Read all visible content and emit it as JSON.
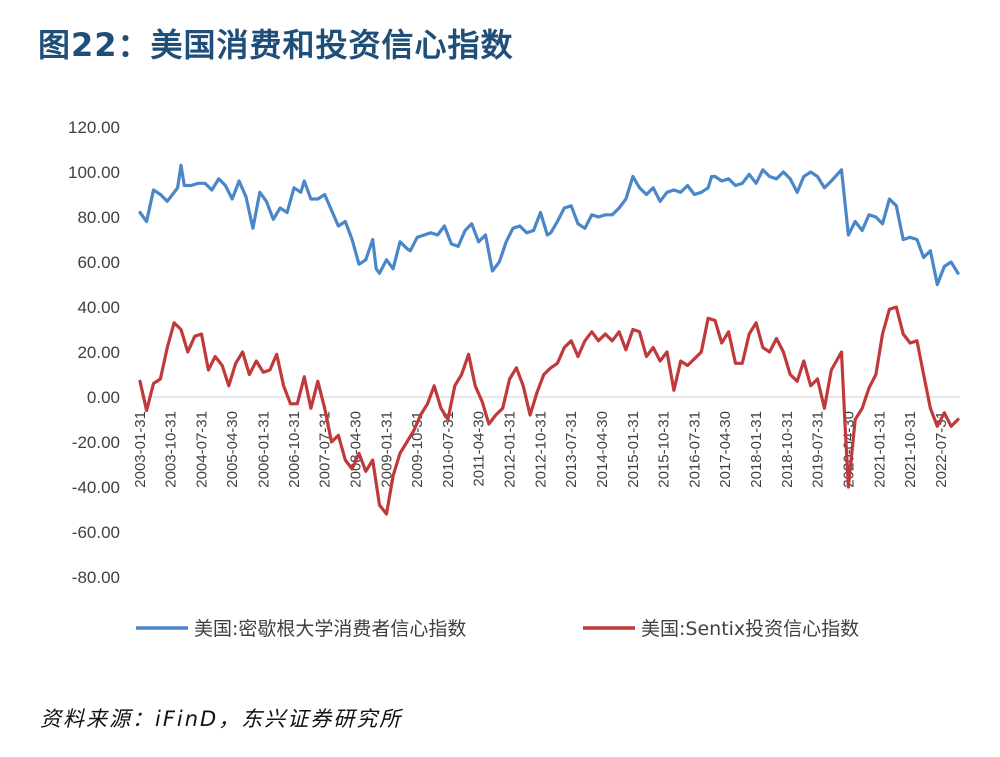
{
  "figure": {
    "title": "图22：美国消费和投资信心指数",
    "source": "资料来源：iFinD，东兴证券研究所"
  },
  "chart_data": {
    "type": "line",
    "title": "图22：美国消费和投资信心指数",
    "xlabel": "",
    "ylabel": "",
    "ylim": [
      -80,
      120
    ],
    "yticks": [
      "120.00",
      "100.00",
      "80.00",
      "60.00",
      "40.00",
      "20.00",
      "0.00",
      "-20.00",
      "-40.00",
      "-60.00",
      "-80.00"
    ],
    "ytick_values": [
      120,
      100,
      80,
      60,
      40,
      20,
      0,
      -20,
      -40,
      -60,
      -80
    ],
    "xtick_labels": [
      "2003-01-31",
      "2003-10-31",
      "2004-07-31",
      "2005-04-30",
      "2006-01-31",
      "2006-10-31",
      "2007-07-31",
      "2008-04-30",
      "2009-01-31",
      "2009-10-31",
      "2010-07-31",
      "2011-04-30",
      "2012-01-31",
      "2012-10-31",
      "2013-07-31",
      "2014-04-30",
      "2015-01-31",
      "2015-10-31",
      "2016-07-31",
      "2017-04-30",
      "2018-01-31",
      "2018-10-31",
      "2019-07-31",
      "2020-04-30",
      "2021-01-31",
      "2021-10-31",
      "2022-07-31"
    ],
    "x_range": [
      "2003-01-31",
      "2022-12-31"
    ],
    "grid": false,
    "zero_line": true,
    "legend_position": "bottom",
    "series": [
      {
        "name": "美国:密歇根大学消费者信心指数",
        "color": "#4a86c8",
        "points": [
          [
            "2003-01-31",
            82
          ],
          [
            "2003-03-31",
            78
          ],
          [
            "2003-05-31",
            92
          ],
          [
            "2003-07-31",
            90
          ],
          [
            "2003-09-31",
            87
          ],
          [
            "2003-12-31",
            93
          ],
          [
            "2004-01-31",
            103
          ],
          [
            "2004-02-29",
            94
          ],
          [
            "2004-04-30",
            94
          ],
          [
            "2004-06-30",
            95
          ],
          [
            "2004-08-31",
            95
          ],
          [
            "2004-10-31",
            92
          ],
          [
            "2004-12-31",
            97
          ],
          [
            "2005-02-28",
            94
          ],
          [
            "2005-04-30",
            88
          ],
          [
            "2005-06-30",
            96
          ],
          [
            "2005-08-31",
            89
          ],
          [
            "2005-10-31",
            75
          ],
          [
            "2005-12-31",
            91
          ],
          [
            "2006-02-28",
            87
          ],
          [
            "2006-04-30",
            79
          ],
          [
            "2006-06-30",
            84
          ],
          [
            "2006-08-31",
            82
          ],
          [
            "2006-10-31",
            93
          ],
          [
            "2006-12-31",
            91
          ],
          [
            "2007-01-31",
            96
          ],
          [
            "2007-03-31",
            88
          ],
          [
            "2007-05-31",
            88
          ],
          [
            "2007-07-31",
            90
          ],
          [
            "2007-09-30",
            83
          ],
          [
            "2007-11-30",
            76
          ],
          [
            "2008-01-31",
            78
          ],
          [
            "2008-03-31",
            70
          ],
          [
            "2008-05-31",
            59
          ],
          [
            "2008-07-31",
            61
          ],
          [
            "2008-09-30",
            70
          ],
          [
            "2008-10-31",
            57
          ],
          [
            "2008-11-30",
            55
          ],
          [
            "2009-01-31",
            61
          ],
          [
            "2009-03-31",
            57
          ],
          [
            "2009-05-31",
            69
          ],
          [
            "2009-07-31",
            66
          ],
          [
            "2009-08-31",
            65
          ],
          [
            "2009-10-31",
            71
          ],
          [
            "2009-12-31",
            72
          ],
          [
            "2010-02-28",
            73
          ],
          [
            "2010-04-30",
            72
          ],
          [
            "2010-06-30",
            76
          ],
          [
            "2010-08-31",
            68
          ],
          [
            "2010-10-31",
            67
          ],
          [
            "2010-12-31",
            74
          ],
          [
            "2011-02-28",
            77
          ],
          [
            "2011-04-30",
            69
          ],
          [
            "2011-06-30",
            72
          ],
          [
            "2011-08-31",
            56
          ],
          [
            "2011-10-31",
            60
          ],
          [
            "2011-12-31",
            69
          ],
          [
            "2012-02-29",
            75
          ],
          [
            "2012-04-30",
            76
          ],
          [
            "2012-06-30",
            73
          ],
          [
            "2012-08-31",
            74
          ],
          [
            "2012-10-31",
            82
          ],
          [
            "2012-12-31",
            72
          ],
          [
            "2013-01-31",
            73
          ],
          [
            "2013-03-31",
            78
          ],
          [
            "2013-05-31",
            84
          ],
          [
            "2013-07-31",
            85
          ],
          [
            "2013-09-30",
            77
          ],
          [
            "2013-11-30",
            75
          ],
          [
            "2014-01-31",
            81
          ],
          [
            "2014-03-31",
            80
          ],
          [
            "2014-05-31",
            81
          ],
          [
            "2014-07-31",
            81
          ],
          [
            "2014-09-30",
            84
          ],
          [
            "2014-11-30",
            88
          ],
          [
            "2015-01-31",
            98
          ],
          [
            "2015-03-31",
            93
          ],
          [
            "2015-05-31",
            90
          ],
          [
            "2015-07-31",
            93
          ],
          [
            "2015-09-30",
            87
          ],
          [
            "2015-11-30",
            91
          ],
          [
            "2016-01-31",
            92
          ],
          [
            "2016-03-31",
            91
          ],
          [
            "2016-05-31",
            94
          ],
          [
            "2016-07-31",
            90
          ],
          [
            "2016-09-30",
            91
          ],
          [
            "2016-11-30",
            93
          ],
          [
            "2016-12-31",
            98
          ],
          [
            "2017-01-31",
            98
          ],
          [
            "2017-03-31",
            96
          ],
          [
            "2017-05-31",
            97
          ],
          [
            "2017-07-31",
            94
          ],
          [
            "2017-09-30",
            95
          ],
          [
            "2017-11-30",
            99
          ],
          [
            "2018-01-31",
            95
          ],
          [
            "2018-03-31",
            101
          ],
          [
            "2018-05-31",
            98
          ],
          [
            "2018-07-31",
            97
          ],
          [
            "2018-09-30",
            100
          ],
          [
            "2018-11-30",
            97
          ],
          [
            "2019-01-31",
            91
          ],
          [
            "2019-03-31",
            98
          ],
          [
            "2019-05-31",
            100
          ],
          [
            "2019-07-31",
            98
          ],
          [
            "2019-09-30",
            93
          ],
          [
            "2019-11-30",
            96
          ],
          [
            "2020-02-29",
            101
          ],
          [
            "2020-04-30",
            72
          ],
          [
            "2020-06-30",
            78
          ],
          [
            "2020-08-31",
            74
          ],
          [
            "2020-10-31",
            81
          ],
          [
            "2020-12-31",
            80
          ],
          [
            "2021-02-28",
            77
          ],
          [
            "2021-04-30",
            88
          ],
          [
            "2021-06-30",
            85
          ],
          [
            "2021-08-31",
            70
          ],
          [
            "2021-10-31",
            71
          ],
          [
            "2021-12-31",
            70
          ],
          [
            "2022-02-28",
            62
          ],
          [
            "2022-04-30",
            65
          ],
          [
            "2022-06-30",
            50
          ],
          [
            "2022-08-31",
            58
          ],
          [
            "2022-10-31",
            60
          ],
          [
            "2022-12-31",
            55
          ]
        ]
      },
      {
        "name": "美国:Sentix投资信心指数",
        "color": "#c0393b",
        "points": [
          [
            "2003-01-31",
            7
          ],
          [
            "2003-03-31",
            -6
          ],
          [
            "2003-05-31",
            6
          ],
          [
            "2003-07-31",
            8
          ],
          [
            "2003-09-31",
            22
          ],
          [
            "2003-11-30",
            33
          ],
          [
            "2004-01-31",
            30
          ],
          [
            "2004-03-31",
            20
          ],
          [
            "2004-05-31",
            27
          ],
          [
            "2004-07-31",
            28
          ],
          [
            "2004-09-30",
            12
          ],
          [
            "2004-11-30",
            18
          ],
          [
            "2005-01-31",
            14
          ],
          [
            "2005-03-31",
            5
          ],
          [
            "2005-05-31",
            15
          ],
          [
            "2005-07-31",
            20
          ],
          [
            "2005-09-30",
            10
          ],
          [
            "2005-11-30",
            16
          ],
          [
            "2006-01-31",
            11
          ],
          [
            "2006-03-31",
            12
          ],
          [
            "2006-05-31",
            19
          ],
          [
            "2006-07-31",
            5
          ],
          [
            "2006-09-30",
            -3
          ],
          [
            "2006-11-30",
            -3
          ],
          [
            "2007-01-31",
            9
          ],
          [
            "2007-03-31",
            -5
          ],
          [
            "2007-05-31",
            7
          ],
          [
            "2007-07-31",
            -5
          ],
          [
            "2007-09-30",
            -20
          ],
          [
            "2007-11-30",
            -17
          ],
          [
            "2008-01-31",
            -28
          ],
          [
            "2008-03-31",
            -32
          ],
          [
            "2008-05-31",
            -25
          ],
          [
            "2008-07-31",
            -33
          ],
          [
            "2008-09-30",
            -28
          ],
          [
            "2008-11-30",
            -48
          ],
          [
            "2009-01-31",
            -52
          ],
          [
            "2009-03-31",
            -35
          ],
          [
            "2009-05-31",
            -25
          ],
          [
            "2009-07-31",
            -20
          ],
          [
            "2009-09-30",
            -15
          ],
          [
            "2009-11-30",
            -8
          ],
          [
            "2010-01-31",
            -3
          ],
          [
            "2010-03-31",
            5
          ],
          [
            "2010-05-31",
            -5
          ],
          [
            "2010-07-31",
            -10
          ],
          [
            "2010-09-30",
            5
          ],
          [
            "2010-11-30",
            10
          ],
          [
            "2011-01-31",
            19
          ],
          [
            "2011-03-31",
            5
          ],
          [
            "2011-05-31",
            -2
          ],
          [
            "2011-07-31",
            -12
          ],
          [
            "2011-09-30",
            -8
          ],
          [
            "2011-11-30",
            -5
          ],
          [
            "2012-01-31",
            8
          ],
          [
            "2012-03-31",
            13
          ],
          [
            "2012-05-31",
            5
          ],
          [
            "2012-07-31",
            -8
          ],
          [
            "2012-09-30",
            2
          ],
          [
            "2012-11-30",
            10
          ],
          [
            "2013-01-31",
            13
          ],
          [
            "2013-03-31",
            15
          ],
          [
            "2013-05-31",
            22
          ],
          [
            "2013-07-31",
            25
          ],
          [
            "2013-09-30",
            18
          ],
          [
            "2013-11-30",
            25
          ],
          [
            "2014-01-31",
            29
          ],
          [
            "2014-03-31",
            25
          ],
          [
            "2014-05-31",
            28
          ],
          [
            "2014-07-31",
            25
          ],
          [
            "2014-09-30",
            29
          ],
          [
            "2014-11-30",
            21
          ],
          [
            "2015-01-31",
            30
          ],
          [
            "2015-03-31",
            29
          ],
          [
            "2015-05-31",
            18
          ],
          [
            "2015-07-31",
            22
          ],
          [
            "2015-09-30",
            16
          ],
          [
            "2015-11-30",
            20
          ],
          [
            "2016-01-31",
            3
          ],
          [
            "2016-03-31",
            16
          ],
          [
            "2016-05-31",
            14
          ],
          [
            "2016-07-31",
            17
          ],
          [
            "2016-09-30",
            20
          ],
          [
            "2016-11-30",
            35
          ],
          [
            "2017-01-31",
            34
          ],
          [
            "2017-03-31",
            24
          ],
          [
            "2017-05-31",
            29
          ],
          [
            "2017-07-31",
            15
          ],
          [
            "2017-09-30",
            15
          ],
          [
            "2017-11-30",
            28
          ],
          [
            "2018-01-31",
            33
          ],
          [
            "2018-03-31",
            22
          ],
          [
            "2018-05-31",
            20
          ],
          [
            "2018-07-31",
            26
          ],
          [
            "2018-09-30",
            20
          ],
          [
            "2018-11-30",
            10
          ],
          [
            "2019-01-31",
            7
          ],
          [
            "2019-03-31",
            16
          ],
          [
            "2019-05-31",
            5
          ],
          [
            "2019-07-31",
            8
          ],
          [
            "2019-09-30",
            -5
          ],
          [
            "2019-11-30",
            12
          ],
          [
            "2020-02-29",
            20
          ],
          [
            "2020-03-31",
            -12
          ],
          [
            "2020-04-30",
            -40
          ],
          [
            "2020-06-30",
            -10
          ],
          [
            "2020-08-31",
            -5
          ],
          [
            "2020-10-31",
            4
          ],
          [
            "2020-12-31",
            10
          ],
          [
            "2021-02-28",
            28
          ],
          [
            "2021-04-30",
            39
          ],
          [
            "2021-06-30",
            40
          ],
          [
            "2021-08-31",
            28
          ],
          [
            "2021-10-31",
            24
          ],
          [
            "2021-12-31",
            25
          ],
          [
            "2022-02-28",
            10
          ],
          [
            "2022-04-30",
            -5
          ],
          [
            "2022-06-30",
            -13
          ],
          [
            "2022-08-31",
            -7
          ],
          [
            "2022-10-31",
            -13
          ],
          [
            "2022-12-31",
            -10
          ]
        ]
      }
    ]
  }
}
